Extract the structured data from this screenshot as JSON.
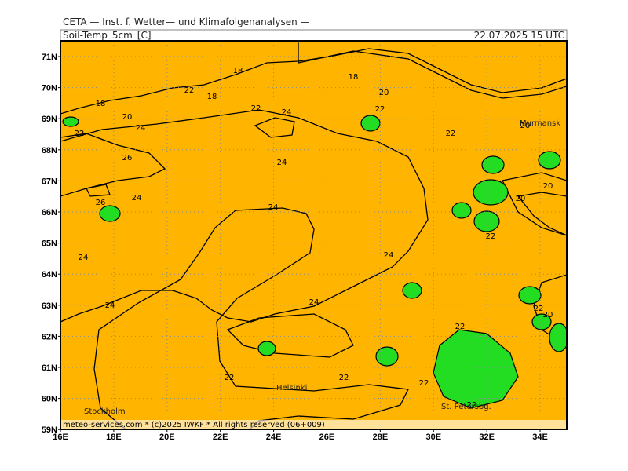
{
  "header": {
    "title": "CETA — Inst. f. Wetter— und Klimafolgenanalysen —",
    "parameter": "Soil-Temp_5cm_[C]",
    "valid_time": "22.07.2025 15 UTC"
  },
  "lat_labels": [
    "71N",
    "70N",
    "69N",
    "68N",
    "67N",
    "66N",
    "65N",
    "64N",
    "63N",
    "62N",
    "61N",
    "60N",
    "59N"
  ],
  "lon_labels": [
    "16E",
    "18E",
    "20E",
    "22E",
    "24E",
    "26E",
    "28E",
    "30E",
    "32E",
    "34E"
  ],
  "cities": [
    "Murmansk",
    "Stockholm",
    "Helsinki",
    "St. Petersbg."
  ],
  "contour_labels": [
    "18",
    "22",
    "18",
    "18",
    "20",
    "22",
    "24",
    "20",
    "22",
    "20",
    "18",
    "22",
    "24",
    "26",
    "24",
    "26",
    "24",
    "24",
    "24",
    "24",
    "24",
    "24",
    "22",
    "22",
    "22",
    "22",
    "20",
    "20",
    "22",
    "22",
    "22",
    "22",
    "20"
  ],
  "footer": "meteo-services.com * (c)2025 IWKF * All rights reserved (06+009)"
}
